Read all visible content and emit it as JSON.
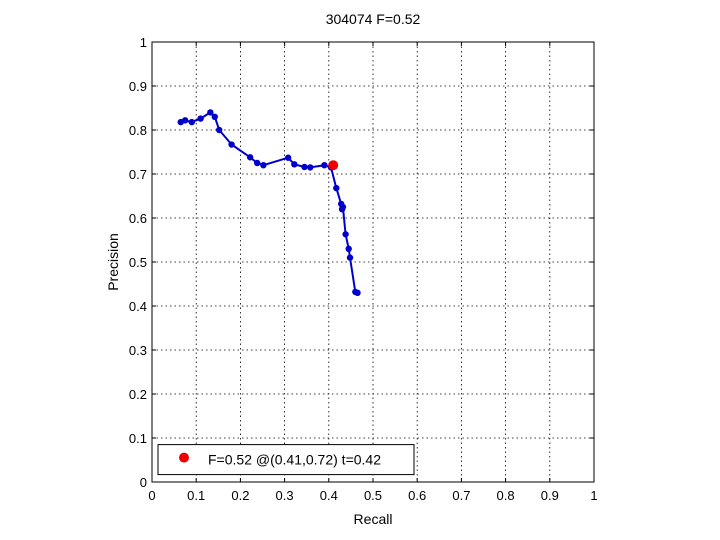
{
  "chart_data": {
    "type": "line",
    "title": "304074 F=0.52",
    "xlabel": "Recall",
    "ylabel": "Precision",
    "xlim": [
      0,
      1
    ],
    "ylim": [
      0,
      1
    ],
    "grid": true,
    "legend_position": "bottom-left",
    "x_ticks": [
      "0",
      "0.1",
      "0.2",
      "0.3",
      "0.4",
      "0.5",
      "0.6",
      "0.7",
      "0.8",
      "0.9",
      "1"
    ],
    "y_ticks": [
      "0",
      "0.1",
      "0.2",
      "0.3",
      "0.4",
      "0.5",
      "0.6",
      "0.7",
      "0.8",
      "0.9",
      "1"
    ],
    "series": [
      {
        "color": "#0000cc",
        "points": [
          [
            0.065,
            0.818
          ],
          [
            0.075,
            0.822
          ],
          [
            0.09,
            0.818
          ],
          [
            0.11,
            0.826
          ],
          [
            0.132,
            0.84
          ],
          [
            0.142,
            0.83
          ],
          [
            0.152,
            0.8
          ],
          [
            0.18,
            0.767
          ],
          [
            0.222,
            0.738
          ],
          [
            0.238,
            0.725
          ],
          [
            0.252,
            0.72
          ],
          [
            0.308,
            0.737
          ],
          [
            0.322,
            0.722
          ],
          [
            0.345,
            0.716
          ],
          [
            0.358,
            0.715
          ],
          [
            0.39,
            0.72
          ],
          [
            0.405,
            0.715
          ],
          [
            0.417,
            0.668
          ],
          [
            0.428,
            0.632
          ],
          [
            0.43,
            0.62
          ],
          [
            0.432,
            0.625
          ],
          [
            0.438,
            0.563
          ],
          [
            0.445,
            0.53
          ],
          [
            0.448,
            0.51
          ],
          [
            0.46,
            0.432
          ],
          [
            0.465,
            0.43
          ]
        ]
      }
    ],
    "highlight_point": {
      "x": 0.41,
      "y": 0.72,
      "color": "#ee0000"
    },
    "legend": {
      "text": "F=0.52 @(0.41,0.72) t=0.42",
      "marker_color": "#ee0000"
    }
  }
}
